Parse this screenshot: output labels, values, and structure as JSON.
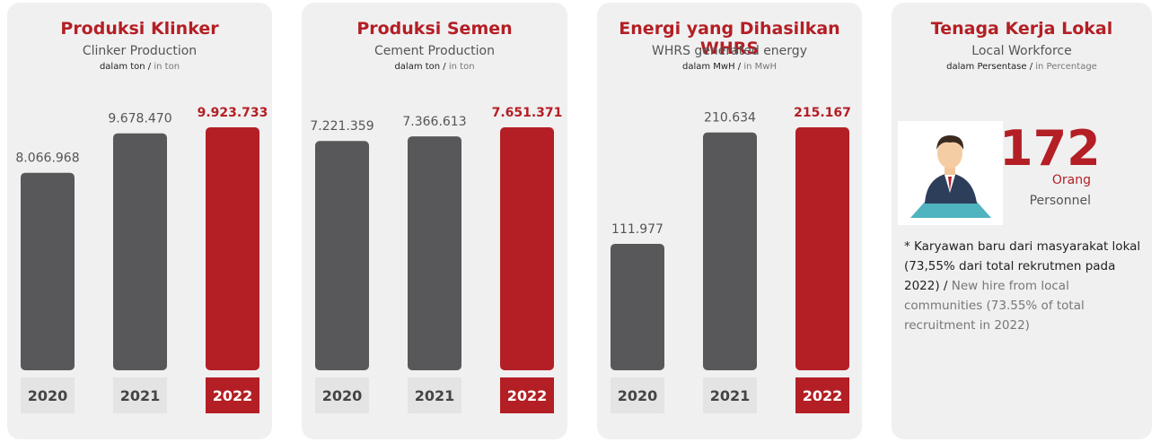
{
  "chart_data": [
    {
      "type": "bar",
      "title": "Produksi Klinker",
      "subtitle": "Clinker Production",
      "unit_id": "dalam ton /",
      "unit_en": "in ton",
      "categories": [
        "2020",
        "2021",
        "2022"
      ],
      "values": [
        8066968,
        9678470,
        9923733
      ],
      "value_labels": [
        "8.066.968",
        "9.678.470",
        "9.923.733"
      ],
      "colors": [
        "#58585a",
        "#58585a",
        "#b31f24"
      ]
    },
    {
      "type": "bar",
      "title": "Produksi Semen",
      "subtitle": "Cement Production",
      "unit_id": "dalam ton /",
      "unit_en": "in ton",
      "categories": [
        "2020",
        "2021",
        "2022"
      ],
      "values": [
        7221359,
        7366613,
        7651371
      ],
      "value_labels": [
        "7.221.359",
        "7.366.613",
        "7.651.371"
      ],
      "colors": [
        "#58585a",
        "#58585a",
        "#b31f24"
      ]
    },
    {
      "type": "bar",
      "title": "Energi yang Dihasilkan WHRS",
      "subtitle": "WHRS generated energy",
      "unit_id": "dalam MwH /",
      "unit_en": "in MwH",
      "categories": [
        "2020",
        "2021",
        "2022"
      ],
      "values": [
        111977,
        210634,
        215167
      ],
      "value_labels": [
        "111.977",
        "210.634",
        "215.167"
      ],
      "colors": [
        "#58585a",
        "#58585a",
        "#b31f24"
      ]
    }
  ],
  "workforce": {
    "title": "Tenaga Kerja Lokal",
    "subtitle": "Local Workforce",
    "unit_id": "dalam Persentase /",
    "unit_en": "in Percentage",
    "value": "172",
    "unit_local": "Orang",
    "unit_english": "Personnel",
    "note_id": "* Karyawan baru dari masyarakat lokal (73,55% dari total rekrutmen pada 2022) /",
    "note_en": "New hire from local communities (73.55% of total recruitment in 2022)"
  }
}
